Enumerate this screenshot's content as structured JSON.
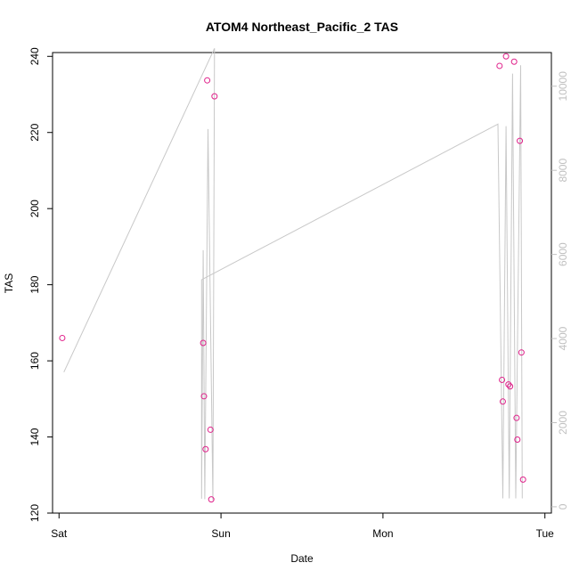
{
  "chart_data": {
    "type": "scatter",
    "title": "ATOM4 Northeast_Pacific_2 TAS",
    "xlabel": "Date",
    "ylabel": "TAS",
    "x_ticks": [
      "Sat",
      "Sun",
      "Mon",
      "Tue"
    ],
    "x_range_days": [
      -0.04,
      3.04
    ],
    "ylim": [
      120,
      241
    ],
    "y_ticks": [
      120,
      140,
      160,
      180,
      200,
      220,
      240
    ],
    "y2lim": [
      -150,
      10800
    ],
    "y2_ticks": [
      0,
      2000,
      4000,
      6000,
      8000,
      10000
    ],
    "colors": {
      "points": "#e0208a",
      "line": "#c8c8c8",
      "right_axis": "#c0c0c0",
      "frame": "#000000"
    },
    "series": [
      {
        "role": "points",
        "axis": "left",
        "points": [
          {
            "x": 0.02,
            "y": 166
          },
          {
            "x": 0.89,
            "y": 164.7
          },
          {
            "x": 0.895,
            "y": 150.7
          },
          {
            "x": 0.905,
            "y": 136.8
          },
          {
            "x": 0.915,
            "y": 233.7
          },
          {
            "x": 0.935,
            "y": 141.9
          },
          {
            "x": 0.94,
            "y": 123.6
          },
          {
            "x": 0.96,
            "y": 229.5
          },
          {
            "x": 2.72,
            "y": 237.5
          },
          {
            "x": 2.735,
            "y": 155
          },
          {
            "x": 2.74,
            "y": 149.3
          },
          {
            "x": 2.76,
            "y": 240
          },
          {
            "x": 2.775,
            "y": 153.8
          },
          {
            "x": 2.785,
            "y": 153.3
          },
          {
            "x": 2.81,
            "y": 238.6
          },
          {
            "x": 2.825,
            "y": 145
          },
          {
            "x": 2.83,
            "y": 139.3
          },
          {
            "x": 2.845,
            "y": 217.8
          },
          {
            "x": 2.855,
            "y": 162.2
          },
          {
            "x": 2.865,
            "y": 128.8
          }
        ]
      },
      {
        "role": "line",
        "axis": "right",
        "points": [
          {
            "x": 0.03,
            "y": 3200
          },
          {
            "x": 0.96,
            "y": 10900
          },
          {
            "x": 0.95,
            "y": 160
          },
          {
            "x": 0.92,
            "y": 8980
          },
          {
            "x": 0.9,
            "y": 180
          },
          {
            "x": 0.89,
            "y": 6100
          },
          {
            "x": 0.88,
            "y": 190
          },
          {
            "x": 0.88,
            "y": 5400
          },
          {
            "x": 2.71,
            "y": 9100
          },
          {
            "x": 2.74,
            "y": 200
          },
          {
            "x": 2.76,
            "y": 9050
          },
          {
            "x": 2.78,
            "y": 200
          },
          {
            "x": 2.8,
            "y": 10300
          },
          {
            "x": 2.82,
            "y": 200
          },
          {
            "x": 2.85,
            "y": 10500
          },
          {
            "x": 2.86,
            "y": 200
          }
        ]
      }
    ]
  }
}
